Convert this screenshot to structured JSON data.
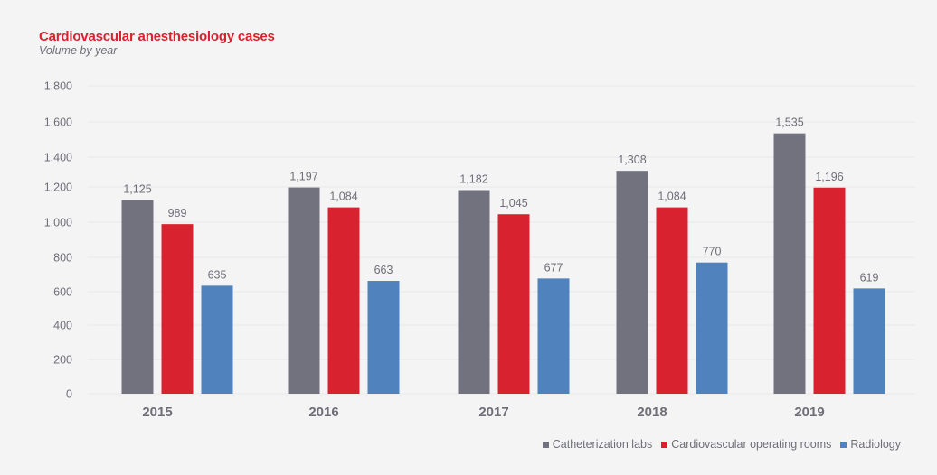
{
  "chart_data": {
    "type": "bar",
    "title": "Cardiovascular anesthesiology cases",
    "subtitle": "Volume by year",
    "xlabel": "",
    "ylabel": "",
    "categories": [
      "2015",
      "2016",
      "2017",
      "2018",
      "2019"
    ],
    "ylim": [
      0,
      1800
    ],
    "yticks": [
      0,
      200,
      400,
      600,
      800,
      1000,
      1200,
      1400,
      1600,
      1800
    ],
    "ytick_labels": [
      "0",
      "200",
      "400",
      "600",
      "800",
      "1,000",
      "1,200",
      "1,400",
      "1,600",
      "1,800"
    ],
    "grid": true,
    "legend_position": "bottom-right",
    "series": [
      {
        "name": "Catheterization labs",
        "color": "#72727e",
        "values": [
          1125,
          1197,
          1182,
          1308,
          1535
        ],
        "labels": [
          "1,125",
          "1,197",
          "1,182",
          "1,308",
          "1,535"
        ]
      },
      {
        "name": "Cardiovascular operating rooms",
        "color": "#d9222f",
        "values": [
          989,
          1084,
          1045,
          1084,
          1196
        ],
        "labels": [
          "989",
          "1,084",
          "1,045",
          "1,084",
          "1,196"
        ]
      },
      {
        "name": "Radiology",
        "color": "#5082bd",
        "values": [
          635,
          663,
          677,
          770,
          619
        ],
        "labels": [
          "635",
          "663",
          "677",
          "770",
          "619"
        ]
      }
    ]
  }
}
